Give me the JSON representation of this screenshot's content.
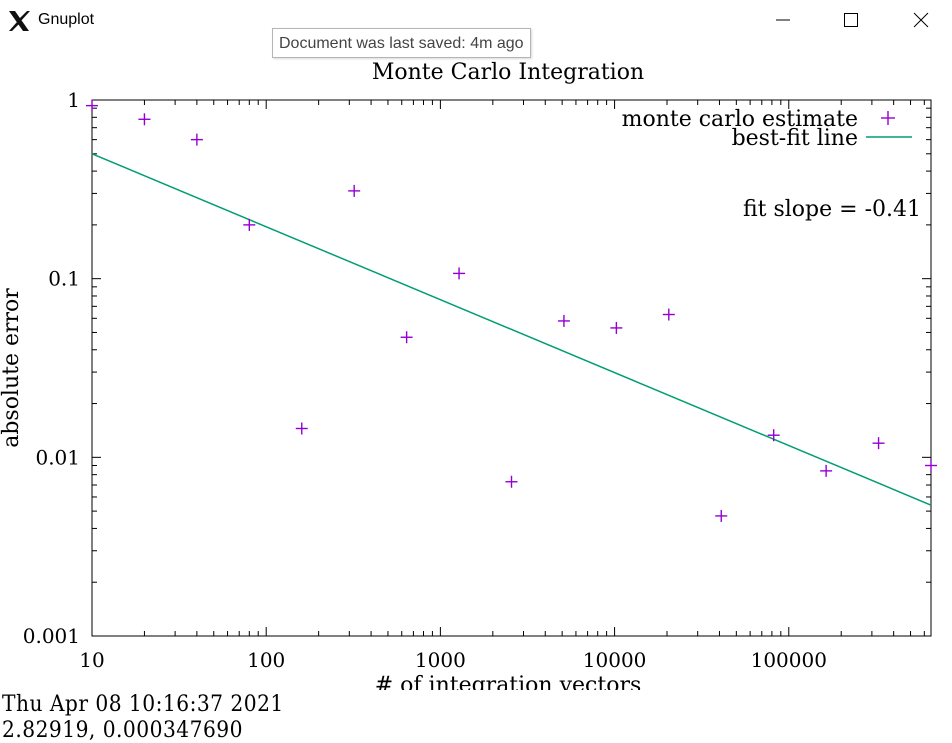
{
  "window": {
    "title": "Gnuplot",
    "tooltip": "Document was last saved: 4m ago",
    "icons": {
      "app": "x11-logo-icon",
      "minimize": "minimize-icon",
      "maximize": "maximize-icon",
      "close": "close-icon"
    }
  },
  "chart_data": {
    "type": "scatter",
    "title": "Monte Carlo Integration",
    "xlabel": "# of integration vectors",
    "ylabel": "absolute error",
    "xscale": "log",
    "yscale": "log",
    "xlim": [
      10,
      655360
    ],
    "ylim": [
      0.001,
      1
    ],
    "xticks": [
      "10",
      "100",
      "1000",
      "10000",
      "100000"
    ],
    "yticks": [
      "0.001",
      "0.01",
      "0.1",
      "1"
    ],
    "grid": false,
    "legend_position": "top-right",
    "series": [
      {
        "name": "monte carlo estimate",
        "marker": "+",
        "color": "#9400d3",
        "x": [
          10,
          20,
          40,
          80,
          160,
          320,
          640,
          1280,
          2560,
          5120,
          10240,
          20480,
          40960,
          81920,
          163840,
          327680,
          655360
        ],
        "y": [
          0.93,
          0.78,
          0.6,
          0.2,
          0.0145,
          0.31,
          0.047,
          0.107,
          0.0073,
          0.058,
          0.053,
          0.063,
          0.0047,
          0.0133,
          0.0084,
          0.012,
          0.009
        ]
      },
      {
        "name": "best-fit line",
        "style": "line",
        "color": "#009e73",
        "x": [
          10,
          655360
        ],
        "y": [
          0.5,
          0.0054
        ]
      }
    ],
    "annotation": "fit slope = -0.41"
  },
  "status": {
    "datetime": "Thu Apr 08 10:16:37 2021",
    "coordinates": "2.82919,   0.000347690"
  }
}
